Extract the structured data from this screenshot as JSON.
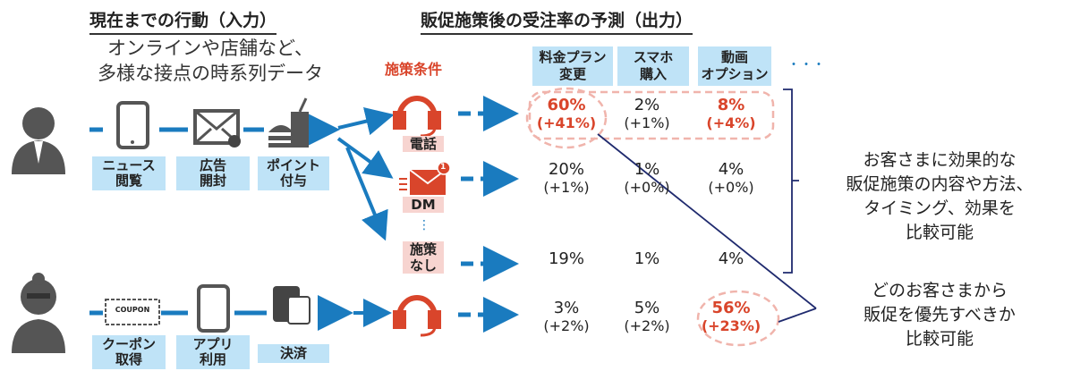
{
  "left": {
    "title": "現在までの行動（入力）",
    "subtitle": [
      "オンラインや店舗など、",
      "多様な接点の時系列データ"
    ],
    "row1": [
      "ニュース\n閲覧",
      "広告\n開封",
      "ポイント\n付与"
    ],
    "row2": [
      "クーポン\n取得",
      "アプリ\n利用",
      "決済"
    ],
    "coupon_text": "COUPON"
  },
  "right": {
    "title": "販促施策後の受注率の予測（出力）",
    "conditions_label": "施策条件",
    "conditions": [
      "電話",
      "DM",
      "施策なし"
    ],
    "vdots": "⋮",
    "hdots": "・・・",
    "headers": [
      "料金プラン\n変更",
      "スマホ\n購入",
      "動画\nオプション"
    ],
    "rows": [
      [
        {
          "v": "60%",
          "d": "(+41%)",
          "hl": true
        },
        {
          "v": "2%",
          "d": "(+1%)"
        },
        {
          "v": "8%",
          "d": "(+4%)",
          "hl": true
        }
      ],
      [
        {
          "v": "20%",
          "d": "(+1%)"
        },
        {
          "v": "1%",
          "d": "(+0%)"
        },
        {
          "v": "4%",
          "d": "(+0%)"
        }
      ],
      [
        {
          "v": "19%"
        },
        {
          "v": "1%"
        },
        {
          "v": "4%"
        }
      ],
      [
        {
          "v": "3%",
          "d": "(+2%)"
        },
        {
          "v": "5%",
          "d": "(+2%)"
        },
        {
          "v": "56%",
          "d": "(+23%)",
          "hl": true
        }
      ]
    ],
    "note1": [
      "お客さまに効果的な",
      "販促施策の内容や方法、",
      "タイミング、効果を",
      "比較可能"
    ],
    "note2": [
      "どのお客さまから",
      "販促を優先すべきか",
      "比較可能"
    ]
  },
  "colors": {
    "blue": "#1a7bbf",
    "red": "#d9452b",
    "navy": "#1f2a6e",
    "label_bg": "#bfe3f7",
    "cond_bg": "#f7d4d0"
  }
}
